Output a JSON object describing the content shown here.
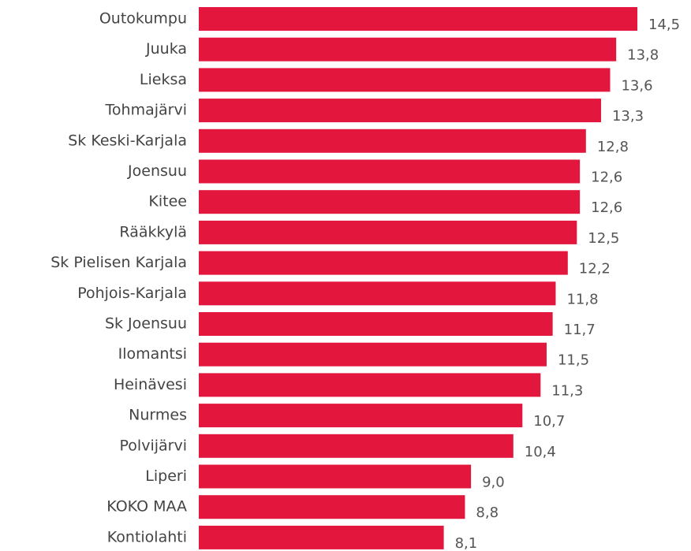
{
  "chart_data": {
    "type": "barh",
    "categories": [
      "Outokumpu",
      "Juuka",
      "Lieksa",
      "Tohmajärvi",
      "Sk Keski-Karjala",
      "Joensuu",
      "Kitee",
      "Rääkkylä",
      "Sk Pielisen Karjala",
      "Pohjois-Karjala",
      "Sk Joensuu",
      "Ilomantsi",
      "Heinävesi",
      "Nurmes",
      "Polvijärvi",
      "Liperi",
      "KOKO MAA",
      "Kontiolahti"
    ],
    "values": [
      14.5,
      13.8,
      13.6,
      13.3,
      12.8,
      12.6,
      12.6,
      12.5,
      12.2,
      11.8,
      11.7,
      11.5,
      11.3,
      10.7,
      10.4,
      9.0,
      8.8,
      8.1
    ],
    "value_labels": [
      "14,5",
      "13,8",
      "13,6",
      "13,3",
      "12,8",
      "12,6",
      "12,6",
      "12,5",
      "12,2",
      "11,8",
      "11,7",
      "11,5",
      "11,3",
      "10,7",
      "10,4",
      "9,0",
      "8,8",
      "8,1"
    ],
    "color": "#e3173e"
  }
}
